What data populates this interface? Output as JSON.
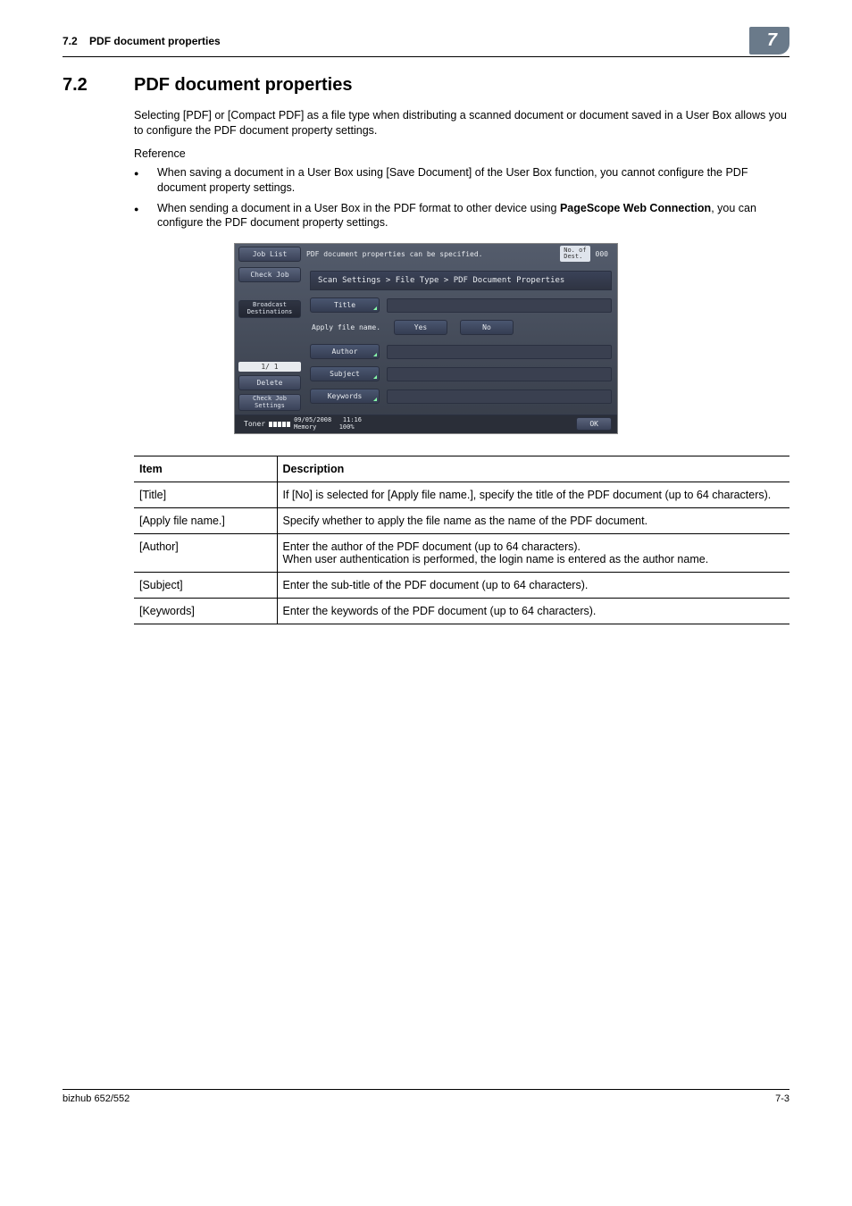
{
  "header": {
    "section_ref": "7.2",
    "section_label": "PDF document properties",
    "chapter_num": "7"
  },
  "section": {
    "number": "7.2",
    "title": "PDF document properties",
    "intro": "Selecting [PDF] or [Compact PDF] as a file type when distributing a scanned document or document saved in a User Box allows you to configure the PDF document property settings.",
    "reference_label": "Reference",
    "bullets": [
      "When saving a document in a User Box using [Save Document] of the User Box function, you cannot configure the PDF document property settings.",
      "When sending a document in a User Box in the PDF format to other device using <b>PageScope Web Connection</b>, you can configure the PDF document property settings."
    ]
  },
  "screenshot": {
    "left": {
      "job_list": "Job List",
      "check_job": "Check Job",
      "broadcast": "Broadcast\nDestinations",
      "page": "1/  1",
      "delete": "Delete",
      "check_settings": "Check Job\nSettings",
      "toner": "Toner"
    },
    "right": {
      "header_msg": "PDF document properties can be specified.",
      "dest_label": "No. of\nDest.",
      "dest_count": "000",
      "breadcrumb": "Scan Settings > File Type > PDF Document Properties",
      "fields": {
        "title": "Title",
        "apply_label": "Apply file name.",
        "yes": "Yes",
        "no": "No",
        "author": "Author",
        "subject": "Subject",
        "keywords": "Keywords"
      },
      "footer": {
        "date": "09/05/2008",
        "time": "11:16",
        "memory": "Memory",
        "memory_val": "100%",
        "ok": "OK"
      }
    }
  },
  "table": {
    "headers": {
      "item": "Item",
      "desc": "Description"
    },
    "rows": [
      {
        "item": "[Title]",
        "desc": "If [No] is selected for [Apply file name.], specify the title of the PDF document (up to 64 characters)."
      },
      {
        "item": "[Apply file name.]",
        "desc": "Specify whether to apply the file name as the name of the PDF document."
      },
      {
        "item": "[Author]",
        "desc": "Enter the author of the PDF document (up to 64 characters).\nWhen user authentication is performed, the login name is entered as the author name."
      },
      {
        "item": "[Subject]",
        "desc": "Enter the sub-title of the PDF document (up to 64 characters)."
      },
      {
        "item": "[Keywords]",
        "desc": "Enter the keywords of the PDF document (up to 64 characters)."
      }
    ]
  },
  "footer": {
    "model": "bizhub 652/552",
    "page": "7-3"
  }
}
